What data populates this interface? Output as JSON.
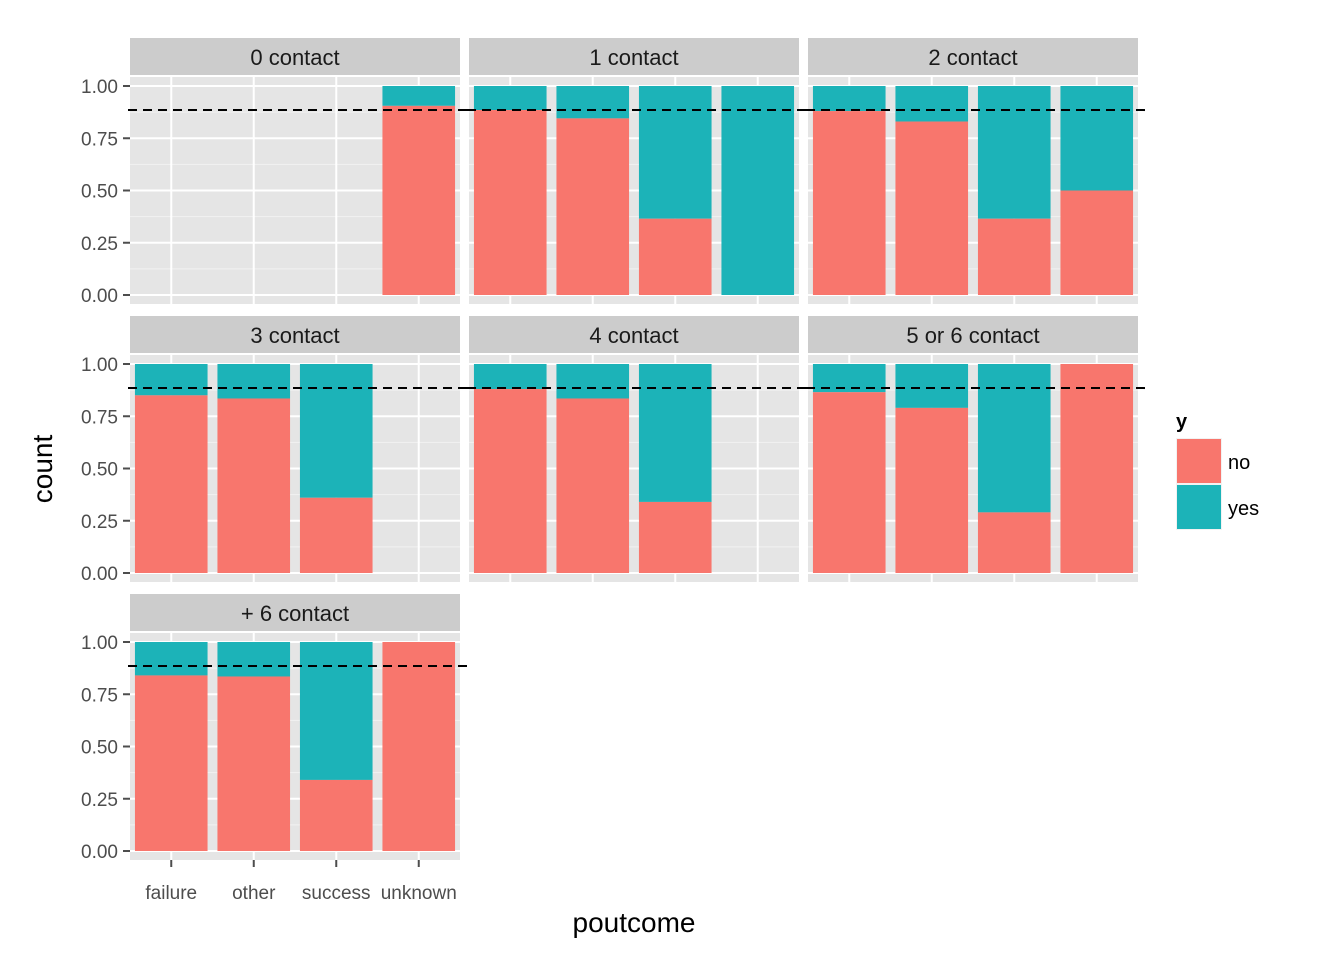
{
  "chart_data": {
    "type": "bar",
    "subtype": "stacked-proportion-faceted",
    "x_label": "poutcome",
    "y_label": "count",
    "categories": [
      "failure",
      "other",
      "success",
      "unknown"
    ],
    "y_ticks": [
      "0.00",
      "0.25",
      "0.50",
      "0.75",
      "1.00"
    ],
    "ylim": [
      0,
      1
    ],
    "reference_line": {
      "y": 0.885,
      "style": "dashed"
    },
    "legend": {
      "title": "y",
      "position": "right",
      "items": [
        {
          "label": "no",
          "color": "#F8766D"
        },
        {
          "label": "yes",
          "color": "#00BFC4"
        }
      ]
    },
    "colors": {
      "no": "#F8766D",
      "yes": "#1CB3B8",
      "panel": "#E5E5E5",
      "strip": "#CCCCCC",
      "grid": "#FFFFFF"
    },
    "panels": [
      {
        "label": "0 contact",
        "no": [
          null,
          null,
          null,
          0.905
        ]
      },
      {
        "label": "1 contact",
        "no": [
          0.885,
          0.845,
          0.365,
          0.0
        ]
      },
      {
        "label": "2 contact",
        "no": [
          0.88,
          0.83,
          0.365,
          0.5
        ]
      },
      {
        "label": "3 contact",
        "no": [
          0.85,
          0.835,
          0.36,
          null
        ]
      },
      {
        "label": "4 contact",
        "no": [
          0.88,
          0.835,
          0.34,
          null
        ]
      },
      {
        "label": "5 or 6 contact",
        "no": [
          0.865,
          0.79,
          0.29,
          1.0
        ]
      },
      {
        "label": "+ 6 contact",
        "no": [
          0.84,
          0.835,
          0.34,
          1.0
        ]
      }
    ]
  }
}
